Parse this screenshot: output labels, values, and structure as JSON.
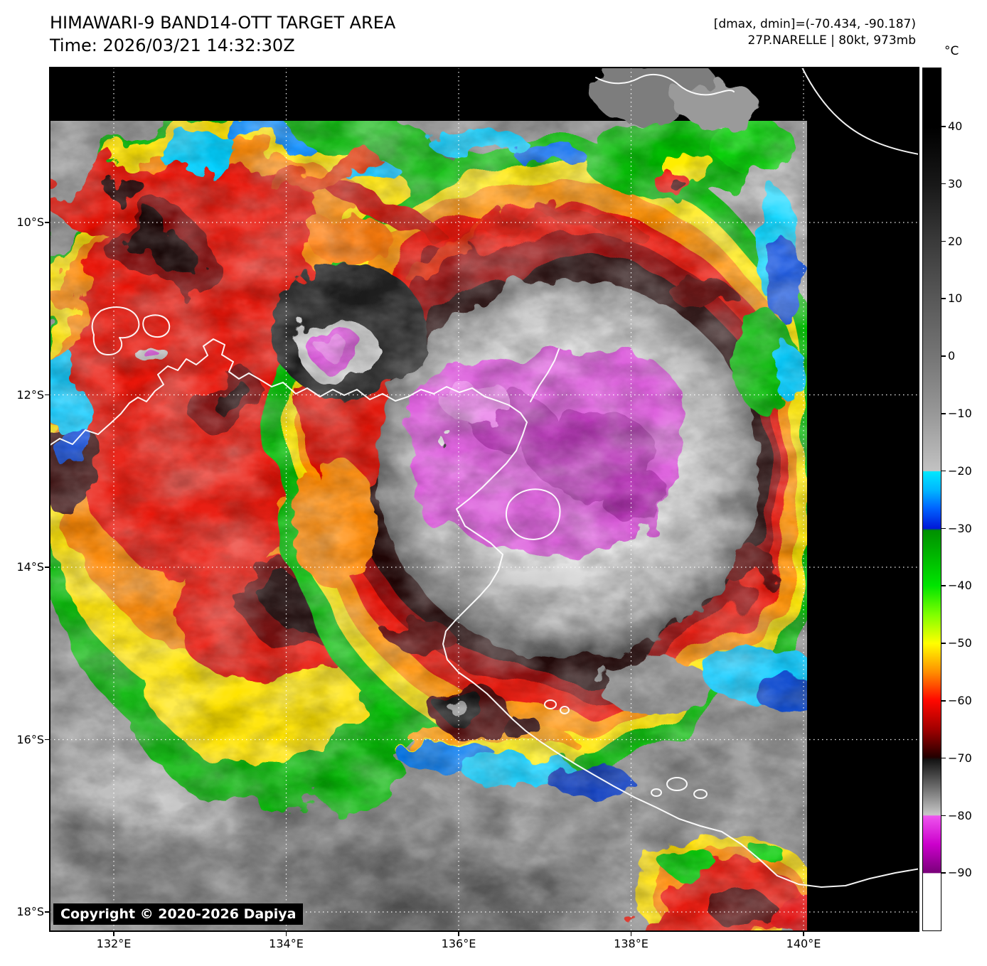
{
  "header": {
    "title": "HIMAWARI-9 BAND14-OTT TARGET AREA",
    "time_line": "Time: 2026/03/21 14:32:30Z",
    "dminmax_line": "[dmax, dmin]=(-70.434, -90.187)",
    "storm_line": "27P.NARELLE | 80kt, 973mb"
  },
  "axes": {
    "lat_labels": [
      "10°S",
      "12°S",
      "14°S",
      "16°S",
      "18°S"
    ],
    "lon_labels": [
      "132°E",
      "134°E",
      "136°E",
      "138°E",
      "140°E"
    ]
  },
  "colorbar": {
    "unit": "°C",
    "tick_labels": [
      "40",
      "30",
      "20",
      "10",
      "0",
      "−10",
      "−20",
      "−30",
      "−40",
      "−50",
      "−60",
      "−70",
      "−80",
      "−90"
    ]
  },
  "footer": {
    "copyright": "Copyright © 2020-2026 Dapiya"
  },
  "palette": {
    "cdo_magenta": "#d94fd9",
    "ring_black": "#1a0500",
    "dark_red": "#8f0000",
    "red": "#e81000",
    "orange": "#ff9000",
    "yellow": "#ffe800",
    "green": "#00bb00",
    "cyan": "#00d4ff",
    "blue": "#0040cc",
    "warm_gray": "#8c8c8c",
    "coastline": "#ffffff"
  }
}
